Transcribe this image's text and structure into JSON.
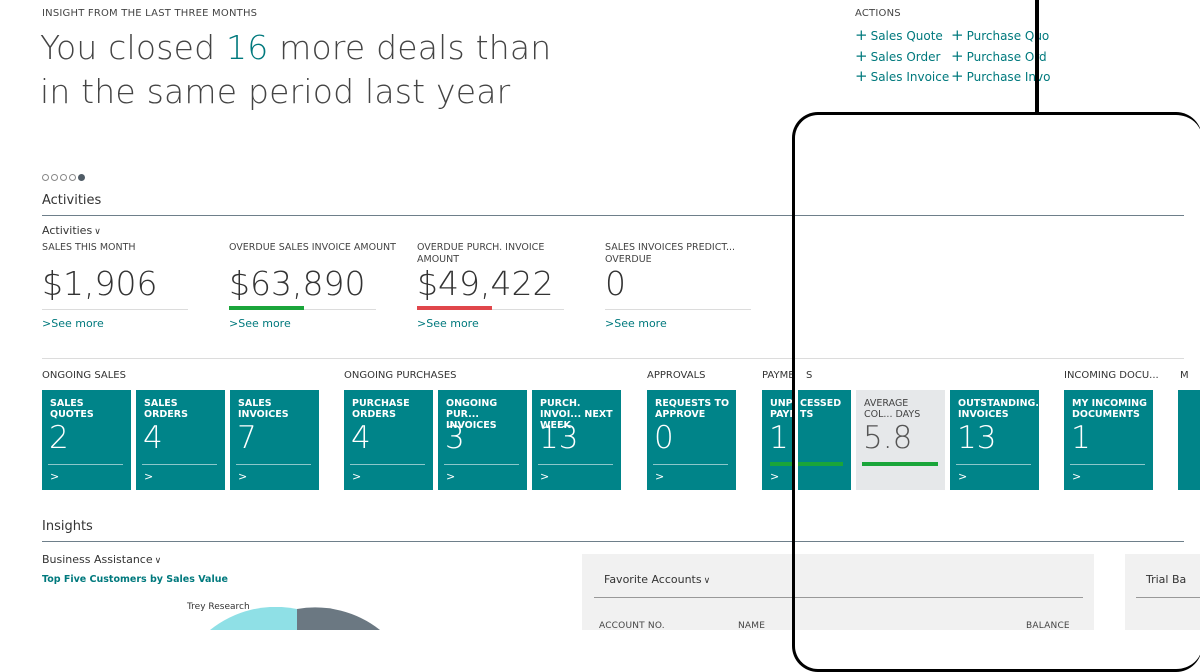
{
  "insight": {
    "label": "INSIGHT FROM THE LAST THREE MONTHS",
    "line1_pre": "You closed ",
    "line1_number": "16",
    "line1_post": " more deals than",
    "line2": "in the same period last year"
  },
  "actions": {
    "label": "ACTIONS",
    "items": [
      "Sales Quote",
      "Sales Order",
      "Sales Invoice",
      "Purchase Quo",
      "Purchase Ord",
      "Purchase Invo"
    ]
  },
  "activities": {
    "section_title": "Activities",
    "dropdown_label": "Activities",
    "kpis": [
      {
        "label": "SALES THIS MONTH",
        "value": "$1,906",
        "see_more": "See more"
      },
      {
        "label": "OVERDUE SALES INVOICE AMOUNT",
        "value": "$63,890",
        "see_more": "See more",
        "indicator": "#1aa53a"
      },
      {
        "label": "OVERDUE PURCH. INVOICE AMOUNT",
        "value": "$49,422",
        "see_more": "See more",
        "indicator": "#e0464b"
      },
      {
        "label": "SALES INVOICES PREDICT... OVERDUE",
        "value": "0",
        "see_more": "See more"
      }
    ]
  },
  "groups": [
    {
      "label": "ONGOING SALES"
    },
    {
      "label": "ONGOING PURCHASES"
    },
    {
      "label": "APPROVALS"
    },
    {
      "label": "PAYME"
    },
    {
      "label": "S"
    },
    {
      "label": "INCOMING DOCU..."
    },
    {
      "label": "M"
    }
  ],
  "tiles": [
    {
      "name": "SALES QUOTES",
      "value": "2"
    },
    {
      "name": "SALES ORDERS",
      "value": "4"
    },
    {
      "name": "SALES INVOICES",
      "value": "7"
    },
    {
      "name": "PURCHASE ORDERS",
      "value": "4"
    },
    {
      "name": "ONGOING PUR... INVOICES",
      "value": "3"
    },
    {
      "name": "PURCH. INVOI... NEXT WEEK",
      "value": "13"
    },
    {
      "name": "REQUESTS TO APPROVE",
      "value": "0"
    },
    {
      "name": "UNP PAYM",
      "value": "1"
    },
    {
      "name": "CESSED TS",
      "value": ""
    },
    {
      "name": "AVERAGE COL... DAYS",
      "value": "5.8"
    },
    {
      "name": "OUTSTANDING... INVOICES",
      "value": "13"
    },
    {
      "name": "MY INCOMING DOCUMENTS",
      "value": "1"
    }
  ],
  "insights": {
    "section_title": "Insights",
    "business_assistance": "Business Assistance",
    "chart_title": "Top Five Customers by Sales Value",
    "pie_label": "Trey Research",
    "favorite_accounts": "Favorite Accounts",
    "columns": [
      "ACCOUNT NO.",
      "NAME",
      "BALANCE"
    ],
    "trial_balance": "Trial Ba"
  },
  "colors": {
    "accent": "#00797d",
    "tile": "#008489",
    "good": "#1aa53a",
    "bad": "#e0464b"
  }
}
